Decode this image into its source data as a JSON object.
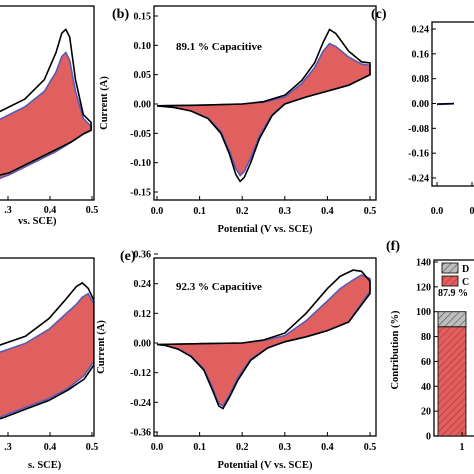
{
  "figure": {
    "panels": [
      {
        "id": "a",
        "letter": "",
        "annotation": "",
        "x_ticks": [
          ".3",
          "0.4",
          "0.5"
        ],
        "x_label": "vs. SCE)",
        "y_ticks": [],
        "y_label": ""
      },
      {
        "id": "b",
        "letter": "(b)",
        "annotation": "89.1 % Capacitive",
        "x_ticks": [
          "0.0",
          "0.1",
          "0.2",
          "0.3",
          "0.4",
          "0.5"
        ],
        "x_label": "Potential (V vs. SCE)",
        "y_ticks": [
          "0.15",
          "0.10",
          "0.05",
          "0.00",
          "-0.05",
          "-0.10",
          "-0.15"
        ],
        "y_label": "Current (A)"
      },
      {
        "id": "c",
        "letter": "(c)",
        "annotation": "",
        "x_ticks": [
          "0.0",
          "0"
        ],
        "x_label": "",
        "y_ticks": [
          "0.24",
          "0.16",
          "0.08",
          "0.00",
          "-0.08",
          "-0.16",
          "-0.24"
        ],
        "y_label": ""
      },
      {
        "id": "d",
        "letter": "",
        "annotation": "",
        "x_ticks": [
          ".3",
          "0.4",
          "0.5"
        ],
        "x_label": "s. SCE)",
        "y_ticks": [],
        "y_label": ""
      },
      {
        "id": "e",
        "letter": "(e)",
        "annotation": "92.3 % Capacitive",
        "x_ticks": [
          "0.0",
          "0.1",
          "0.2",
          "0.3",
          "0.4",
          "0.5"
        ],
        "x_label": "Potential (V vs. SCE)",
        "y_ticks": [
          "0.36",
          "0.24",
          "0.12",
          "0.00",
          "-0.12",
          "-0.24",
          "-0.36"
        ],
        "y_label": "Current (A)"
      },
      {
        "id": "f",
        "letter": "(f)",
        "annotation": "87.9 %",
        "x_ticks": [
          "1"
        ],
        "x_label": "",
        "y_ticks": [
          "140",
          "120",
          "100",
          "80",
          "60",
          "40",
          "20",
          "0"
        ],
        "y_label": "Contribution (%)",
        "legend": [
          "D",
          "C"
        ]
      }
    ],
    "colors": {
      "total_cv": "#000000",
      "capacitive_outline": "#5a5ab4",
      "capacitive_fill": "#e06060",
      "capacitive_hatch": "#b03030",
      "diffusion_fill": "#bdbdbd",
      "diffusion_hatch": "#555555"
    }
  },
  "chart_data": [
    {
      "panel": "a",
      "type": "line",
      "xlabel": "vs. SCE)",
      "ylabel": "",
      "series": [
        {
          "kind": "total",
          "x": [
            0.24,
            0.32,
            0.37,
            0.4,
            0.415,
            0.425,
            0.435,
            0.45,
            0.47,
            0.49,
            0.49,
            0.47,
            0.44,
            0.4,
            0.34,
            0.28,
            0.24
          ],
          "y": [
            0.44,
            0.52,
            0.62,
            0.76,
            0.86,
            0.88,
            0.84,
            0.62,
            0.44,
            0.4,
            0.36,
            0.34,
            0.3,
            0.26,
            0.2,
            0.14,
            0.12
          ]
        },
        {
          "kind": "capacitive",
          "x": [
            0.24,
            0.32,
            0.37,
            0.4,
            0.415,
            0.425,
            0.435,
            0.45,
            0.47,
            0.49,
            0.49,
            0.47,
            0.44,
            0.4,
            0.34,
            0.28,
            0.24
          ],
          "y": [
            0.4,
            0.48,
            0.56,
            0.66,
            0.74,
            0.76,
            0.72,
            0.56,
            0.42,
            0.38,
            0.36,
            0.34,
            0.3,
            0.25,
            0.19,
            0.13,
            0.1
          ]
        }
      ]
    },
    {
      "panel": "b",
      "type": "line",
      "xlabel": "Potential (V vs. SCE)",
      "ylabel": "Current (A)",
      "xlim": [
        0.0,
        0.5
      ],
      "ylim": [
        -0.15,
        0.15
      ],
      "series": [
        {
          "kind": "total",
          "x": [
            0.0,
            0.1,
            0.2,
            0.25,
            0.3,
            0.34,
            0.37,
            0.39,
            0.405,
            0.42,
            0.45,
            0.48,
            0.5,
            0.5,
            0.45,
            0.4,
            0.35,
            0.3,
            0.27,
            0.24,
            0.22,
            0.205,
            0.195,
            0.185,
            0.17,
            0.15,
            0.12,
            0.08,
            0.04,
            0.0
          ],
          "y": [
            -0.003,
            -0.002,
            0.0,
            0.004,
            0.015,
            0.04,
            0.07,
            0.105,
            0.127,
            0.12,
            0.09,
            0.072,
            0.07,
            0.05,
            0.032,
            0.022,
            0.012,
            0.0,
            -0.02,
            -0.06,
            -0.1,
            -0.125,
            -0.132,
            -0.12,
            -0.085,
            -0.05,
            -0.025,
            -0.012,
            -0.006,
            -0.003
          ]
        },
        {
          "kind": "capacitive",
          "x": [
            0.0,
            0.1,
            0.2,
            0.25,
            0.3,
            0.34,
            0.37,
            0.39,
            0.405,
            0.42,
            0.45,
            0.48,
            0.5,
            0.5,
            0.45,
            0.4,
            0.35,
            0.3,
            0.27,
            0.24,
            0.22,
            0.205,
            0.195,
            0.185,
            0.17,
            0.15,
            0.12,
            0.08,
            0.04,
            0.0
          ],
          "y": [
            -0.003,
            -0.002,
            0.0,
            0.003,
            0.012,
            0.035,
            0.062,
            0.09,
            0.103,
            0.098,
            0.08,
            0.068,
            0.066,
            0.05,
            0.032,
            0.022,
            0.012,
            0.0,
            -0.018,
            -0.055,
            -0.092,
            -0.115,
            -0.122,
            -0.11,
            -0.08,
            -0.047,
            -0.024,
            -0.012,
            -0.006,
            -0.003
          ]
        }
      ]
    },
    {
      "panel": "c",
      "type": "line",
      "ylim": [
        -0.24,
        0.24
      ],
      "series": [
        {
          "kind": "total",
          "x": [
            0.0,
            0.02,
            0.04
          ],
          "y": [
            -0.002,
            -0.001,
            0.0
          ]
        },
        {
          "kind": "capacitive",
          "x": [
            0.0,
            0.02,
            0.04
          ],
          "y": [
            -0.003,
            -0.002,
            -0.001
          ]
        }
      ]
    },
    {
      "panel": "d",
      "type": "line",
      "xlabel": "s. SCE)",
      "ylabel": "",
      "series": [
        {
          "kind": "total",
          "x": [
            0.24,
            0.32,
            0.38,
            0.42,
            0.45,
            0.465,
            0.48,
            0.495,
            0.495,
            0.47,
            0.43,
            0.38,
            0.32,
            0.26,
            0.24
          ],
          "y": [
            0.5,
            0.56,
            0.66,
            0.76,
            0.84,
            0.86,
            0.83,
            0.76,
            0.4,
            0.32,
            0.26,
            0.2,
            0.15,
            0.1,
            0.09
          ]
        },
        {
          "kind": "capacitive",
          "x": [
            0.24,
            0.32,
            0.38,
            0.42,
            0.45,
            0.465,
            0.48,
            0.495,
            0.495,
            0.47,
            0.43,
            0.38,
            0.32,
            0.26,
            0.24
          ],
          "y": [
            0.46,
            0.52,
            0.6,
            0.68,
            0.74,
            0.78,
            0.8,
            0.74,
            0.42,
            0.34,
            0.27,
            0.21,
            0.16,
            0.11,
            0.08
          ]
        }
      ]
    },
    {
      "panel": "e",
      "type": "line",
      "xlabel": "Potential (V vs. SCE)",
      "ylabel": "Current (A)",
      "xlim": [
        0.0,
        0.5
      ],
      "ylim": [
        -0.36,
        0.36
      ],
      "series": [
        {
          "kind": "total",
          "x": [
            0.0,
            0.1,
            0.2,
            0.25,
            0.3,
            0.35,
            0.4,
            0.43,
            0.46,
            0.48,
            0.5,
            0.5,
            0.45,
            0.4,
            0.35,
            0.3,
            0.26,
            0.22,
            0.19,
            0.17,
            0.155,
            0.145,
            0.13,
            0.11,
            0.08,
            0.05,
            0.02,
            0.0
          ],
          "y": [
            -0.006,
            -0.003,
            0.0,
            0.012,
            0.04,
            0.12,
            0.22,
            0.27,
            0.295,
            0.29,
            0.25,
            0.2,
            0.085,
            0.05,
            0.025,
            0.005,
            -0.02,
            -0.07,
            -0.15,
            -0.22,
            -0.265,
            -0.255,
            -0.19,
            -0.11,
            -0.055,
            -0.025,
            -0.01,
            -0.006
          ]
        },
        {
          "kind": "capacitive",
          "x": [
            0.0,
            0.1,
            0.2,
            0.25,
            0.3,
            0.35,
            0.4,
            0.43,
            0.46,
            0.48,
            0.5,
            0.5,
            0.45,
            0.4,
            0.35,
            0.3,
            0.26,
            0.22,
            0.19,
            0.17,
            0.155,
            0.145,
            0.13,
            0.11,
            0.08,
            0.05,
            0.02,
            0.0
          ],
          "y": [
            -0.006,
            -0.003,
            0.0,
            0.01,
            0.03,
            0.09,
            0.17,
            0.22,
            0.255,
            0.275,
            0.26,
            0.21,
            0.085,
            0.05,
            0.025,
            0.005,
            -0.02,
            -0.065,
            -0.14,
            -0.21,
            -0.255,
            -0.245,
            -0.18,
            -0.105,
            -0.052,
            -0.024,
            -0.01,
            -0.006
          ]
        }
      ]
    },
    {
      "panel": "f",
      "type": "bar",
      "categories": [
        "1"
      ],
      "ylabel": "Contribution (%)",
      "ylim": [
        0,
        140
      ],
      "series": [
        {
          "name": "C",
          "values": [
            87.9
          ]
        },
        {
          "name": "D",
          "values": [
            12.1
          ]
        }
      ]
    }
  ]
}
